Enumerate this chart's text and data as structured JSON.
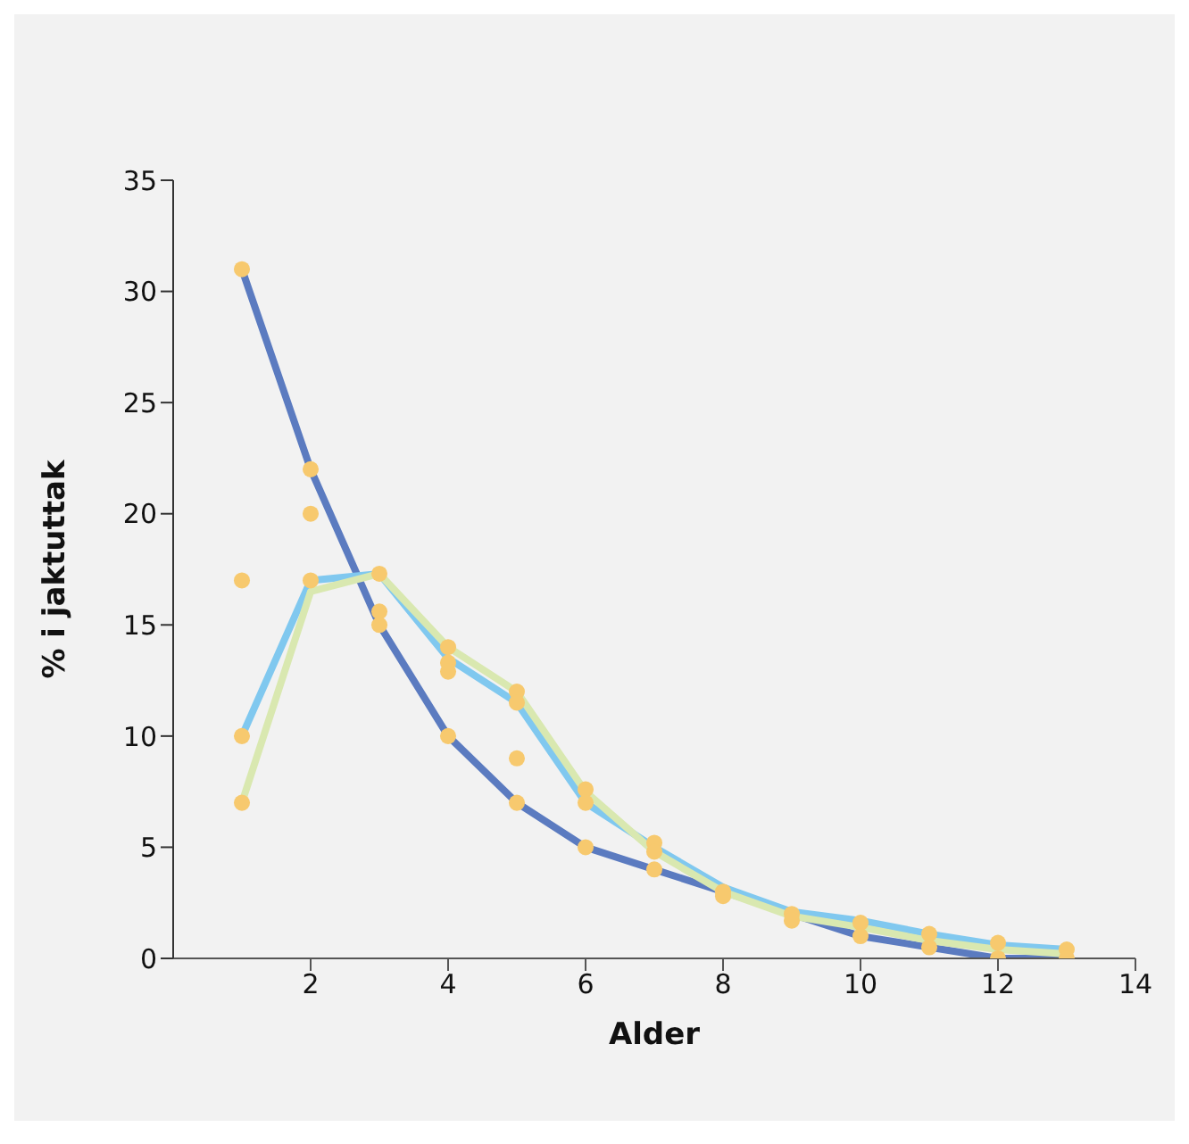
{
  "chart_data": {
    "type": "line",
    "xlabel": "Alder",
    "ylabel": "% i jaktuttak",
    "xlim": [
      0,
      14
    ],
    "xticks": [
      2,
      4,
      6,
      8,
      10,
      12,
      14
    ],
    "ylim": [
      0,
      35
    ],
    "yticks": [
      0,
      5,
      10,
      15,
      20,
      25,
      30,
      35
    ],
    "grid": false,
    "marker": "none",
    "line_style": "solid",
    "series": [
      {
        "color": "#5b7bc0",
        "x": [
          1,
          2,
          3,
          4,
          5,
          6,
          7,
          8,
          9,
          10,
          11,
          12,
          13
        ],
        "values": [
          31,
          22,
          15,
          10,
          7,
          5,
          4,
          3,
          2,
          1,
          0.5,
          0,
          0
        ]
      },
      {
        "color": "#80c8ef",
        "x": [
          1,
          2,
          3,
          4,
          5,
          6,
          7,
          8,
          9,
          10,
          11,
          12,
          13
        ],
        "values": [
          10,
          17,
          17.3,
          13.5,
          11.5,
          7,
          5,
          3.2,
          2.1,
          1.7,
          1.1,
          0.6,
          0.4
        ]
      },
      {
        "color": "#d9e8b0",
        "x": [
          1,
          2,
          3,
          4,
          5,
          6,
          7,
          8,
          9,
          10,
          11,
          12,
          13
        ],
        "values": [
          7,
          16.5,
          17.3,
          14,
          12,
          7.5,
          4.8,
          3,
          1.9,
          1.4,
          0.8,
          0.4,
          0.2
        ]
      },
      {
        "type": "scatter",
        "marker": "circle",
        "color": "#f7c96e",
        "x": [
          1,
          1,
          1,
          1,
          2,
          2,
          2,
          3,
          3,
          3,
          4,
          4,
          4,
          4,
          5,
          5,
          5,
          5,
          6,
          6,
          6,
          7,
          7,
          7,
          8,
          8,
          9,
          9,
          10,
          10,
          11,
          11,
          12,
          12,
          13,
          13
        ],
        "values": [
          31,
          17,
          10,
          7,
          22,
          20,
          17,
          17.3,
          15.6,
          15,
          14,
          13.3,
          12.9,
          10,
          12,
          11.5,
          9,
          7,
          7.6,
          7,
          5,
          5.2,
          4.8,
          4,
          3,
          2.8,
          2,
          1.7,
          1.6,
          1,
          1.1,
          0.5,
          0.7,
          0,
          0.4,
          0
        ]
      }
    ]
  }
}
